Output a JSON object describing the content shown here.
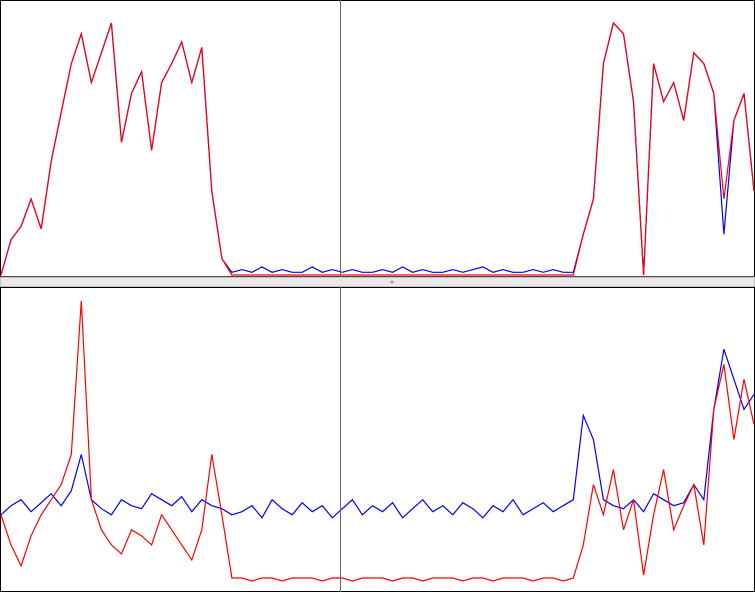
{
  "chart_data": [
    {
      "type": "line",
      "ylim": [
        0,
        100
      ],
      "series": [
        {
          "color": "#0000ff",
          "values": [
            0,
            13,
            18,
            28,
            17,
            42,
            60,
            78,
            89,
            71,
            82,
            93,
            49,
            67,
            75,
            46,
            71,
            78,
            86,
            71,
            84,
            31,
            6,
            1,
            2,
            1,
            3,
            1,
            2,
            1,
            1,
            3,
            1,
            2,
            1,
            2,
            1,
            1,
            2,
            1,
            3,
            1,
            2,
            1,
            1,
            2,
            1,
            2,
            3,
            1,
            2,
            1,
            1,
            2,
            1,
            2,
            1,
            1,
            15,
            28,
            78,
            93,
            89,
            64,
            0,
            78,
            64,
            71,
            57,
            82,
            78,
            67,
            15,
            57,
            67,
            31
          ]
        },
        {
          "color": "#ff0000",
          "values": [
            0,
            13,
            18,
            28,
            17,
            42,
            60,
            78,
            89,
            71,
            82,
            93,
            49,
            67,
            75,
            46,
            71,
            78,
            86,
            71,
            84,
            31,
            6,
            0,
            0,
            0,
            0,
            0,
            0,
            0,
            0,
            0,
            0,
            0,
            0,
            0,
            0,
            0,
            0,
            0,
            0,
            0,
            0,
            0,
            0,
            0,
            0,
            0,
            0,
            0,
            0,
            0,
            0,
            0,
            0,
            0,
            0,
            0,
            15,
            28,
            78,
            93,
            89,
            64,
            0,
            78,
            64,
            71,
            57,
            82,
            78,
            67,
            28,
            57,
            67,
            31
          ]
        }
      ]
    },
    {
      "type": "line",
      "ylim": [
        0,
        100
      ],
      "series": [
        {
          "color": "#0000ff",
          "values": [
            25,
            28,
            30,
            26,
            29,
            32,
            28,
            33,
            45,
            30,
            27,
            25,
            30,
            28,
            27,
            32,
            30,
            28,
            31,
            26,
            30,
            28,
            27,
            25,
            26,
            28,
            24,
            30,
            27,
            25,
            29,
            26,
            28,
            24,
            27,
            30,
            25,
            28,
            26,
            29,
            24,
            27,
            30,
            26,
            28,
            25,
            29,
            27,
            24,
            28,
            26,
            30,
            25,
            27,
            29,
            26,
            28,
            30,
            58,
            50,
            30,
            28,
            27,
            30,
            26,
            32,
            30,
            28,
            29,
            35,
            30,
            60,
            80,
            70,
            60,
            65
          ]
        },
        {
          "color": "#ff0000",
          "values": [
            25,
            15,
            8,
            18,
            25,
            30,
            35,
            45,
            96,
            30,
            20,
            15,
            12,
            20,
            18,
            15,
            25,
            20,
            15,
            10,
            20,
            45,
            25,
            4,
            4,
            3,
            4,
            4,
            3,
            4,
            4,
            4,
            3,
            4,
            4,
            3,
            4,
            4,
            4,
            3,
            4,
            4,
            3,
            4,
            4,
            4,
            3,
            4,
            4,
            3,
            4,
            4,
            4,
            3,
            4,
            4,
            3,
            4,
            15,
            35,
            25,
            40,
            20,
            30,
            5,
            25,
            40,
            20,
            28,
            35,
            15,
            60,
            75,
            50,
            70,
            55
          ]
        }
      ]
    }
  ]
}
